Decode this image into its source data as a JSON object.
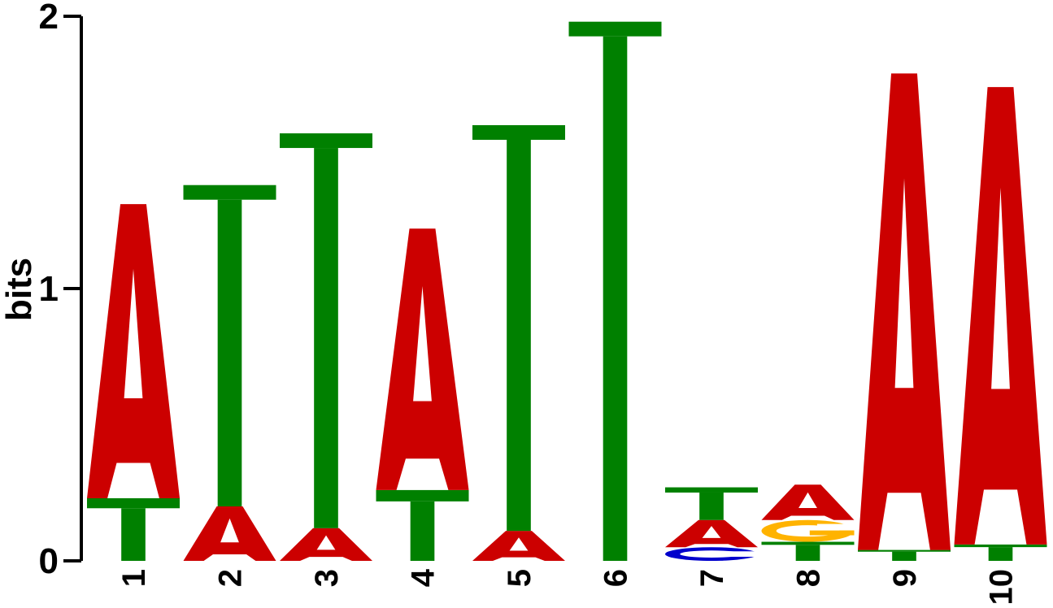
{
  "chart_data": {
    "type": "sequence-logo",
    "ylabel": "bits",
    "ylim": [
      0,
      2
    ],
    "yticks": [
      "0",
      "1",
      "2"
    ],
    "colors": {
      "A": "#cc0000",
      "C": "#0000cc",
      "G": "#ffb300",
      "T": "#008000"
    },
    "positions": [
      {
        "label": "1",
        "stack": [
          {
            "letter": "T",
            "bits": 0.23
          },
          {
            "letter": "A",
            "bits": 1.08
          }
        ]
      },
      {
        "label": "2",
        "stack": [
          {
            "letter": "A",
            "bits": 0.2
          },
          {
            "letter": "T",
            "bits": 1.18
          }
        ]
      },
      {
        "label": "3",
        "stack": [
          {
            "letter": "A",
            "bits": 0.12
          },
          {
            "letter": "T",
            "bits": 1.45
          }
        ]
      },
      {
        "label": "4",
        "stack": [
          {
            "letter": "T",
            "bits": 0.26
          },
          {
            "letter": "A",
            "bits": 0.96
          }
        ]
      },
      {
        "label": "5",
        "stack": [
          {
            "letter": "A",
            "bits": 0.11
          },
          {
            "letter": "T",
            "bits": 1.49
          }
        ]
      },
      {
        "label": "6",
        "stack": [
          {
            "letter": "T",
            "bits": 1.98
          }
        ]
      },
      {
        "label": "7",
        "stack": [
          {
            "letter": "C",
            "bits": 0.05
          },
          {
            "letter": "A",
            "bits": 0.1
          },
          {
            "letter": "T",
            "bits": 0.12
          }
        ]
      },
      {
        "label": "8",
        "stack": [
          {
            "letter": "T",
            "bits": 0.07
          },
          {
            "letter": "G",
            "bits": 0.08
          },
          {
            "letter": "A",
            "bits": 0.13
          }
        ]
      },
      {
        "label": "9",
        "stack": [
          {
            "letter": "T",
            "bits": 0.04
          },
          {
            "letter": "A",
            "bits": 1.75
          }
        ]
      },
      {
        "label": "10",
        "stack": [
          {
            "letter": "T",
            "bits": 0.06
          },
          {
            "letter": "A",
            "bits": 1.68
          }
        ]
      }
    ]
  }
}
